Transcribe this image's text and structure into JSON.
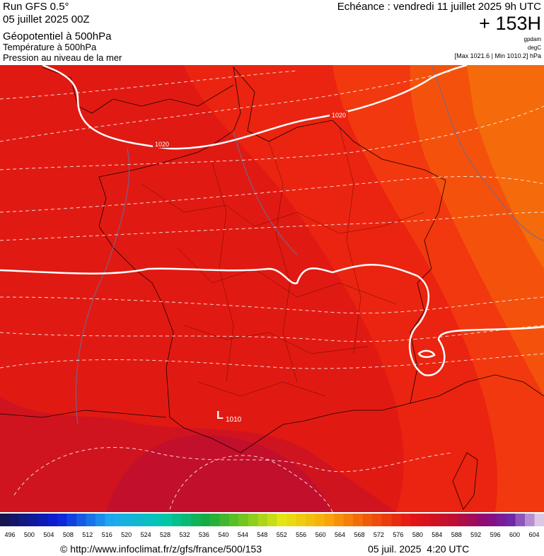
{
  "header": {
    "run": "Run GFS 0.5°",
    "date": "05 juillet 2025 00Z",
    "field1": "Géopotentiel à 500hPa",
    "field2": "Température à 500hPa",
    "field3": "Pression au niveau de la mer",
    "valid": "Echéance : vendredi 11 juillet 2025 9h UTC",
    "lead": "+ 153H",
    "unit1": "gpdam",
    "unit2": "degC",
    "range": "[Max 1021.6 | Min 1010.2] hPa"
  },
  "map": {
    "isobar_labels": [
      "1020",
      "1020"
    ],
    "low_symbol": "L",
    "low_value": "1010"
  },
  "colorbar": {
    "labels": [
      496,
      500,
      504,
      508,
      512,
      516,
      520,
      524,
      528,
      532,
      536,
      540,
      544,
      548,
      552,
      556,
      560,
      564,
      568,
      572,
      576,
      580,
      584,
      588,
      592,
      596,
      600,
      604
    ]
  },
  "footer": {
    "source": "© http://www.infoclimat.fr/z/gfs/france/500/153",
    "timestamp": "05 juil. 2025  4:20 UTC"
  }
}
